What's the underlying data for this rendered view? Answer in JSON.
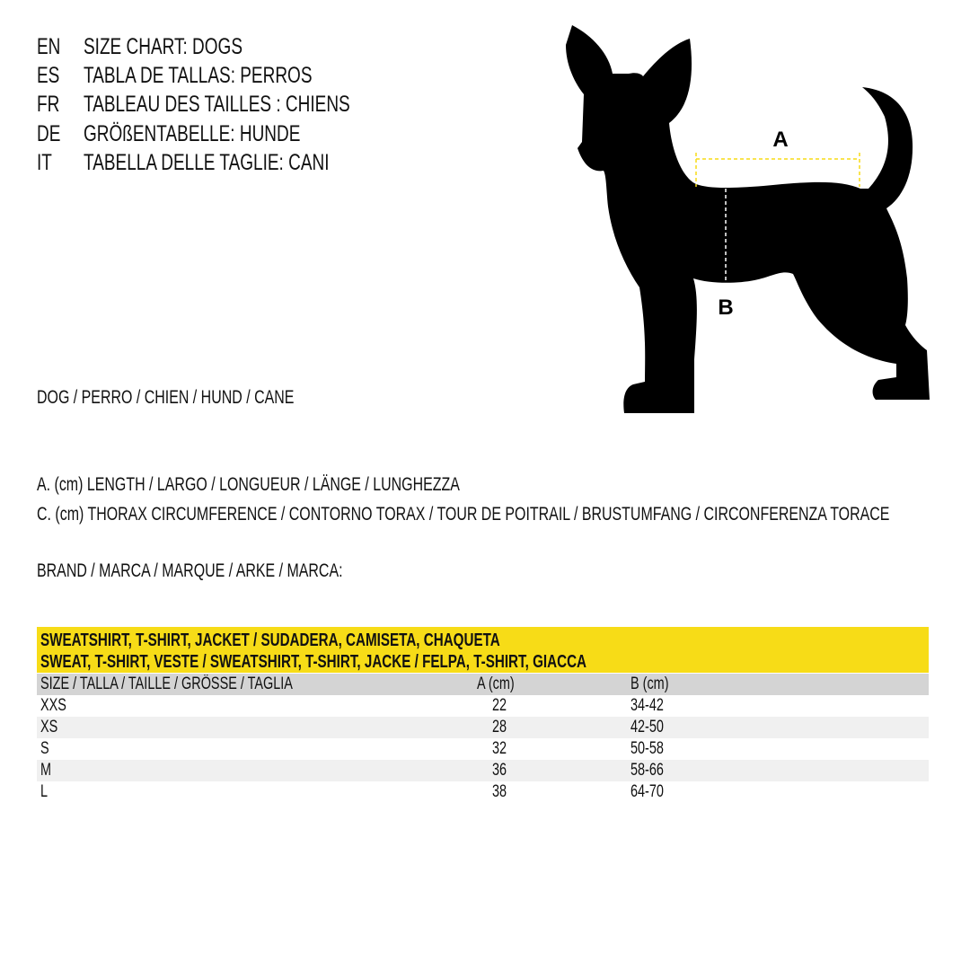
{
  "titles": [
    {
      "lang": "EN",
      "text": "SIZE CHART: DOGS"
    },
    {
      "lang": "ES",
      "text": "TABLA DE TALLAS: PERROS"
    },
    {
      "lang": "FR",
      "text": "TABLEAU DES TAILLES : CHIENS"
    },
    {
      "lang": "DE",
      "text": "GRÖßENTABELLE: HUNDE"
    },
    {
      "lang": "IT",
      "text": "TABELLA DELLE TAGLIE: CANI"
    }
  ],
  "animal": "DOG / PERRO / CHIEN / HUND / CANE",
  "measure_a": "A. (cm) LENGTH / LARGO / LONGUEUR / LÄNGE / LUNGHEZZA",
  "measure_c": "C. (cm) THORAX CIRCUMFERENCE / CONTORNO TORAX / TOUR DE POITRAIL / BRUSTUMFANG / CIRCONFERENZA TORACE",
  "brand": "BRAND / MARCA / MARQUE / ARKE / MARCA:",
  "diagram": {
    "label_a": "A",
    "label_b": "B",
    "colors": {
      "silhouette": "#000000",
      "length_line": "#f7dc17",
      "chest_line": "#ffffff"
    }
  },
  "table": {
    "title_1": "SWEATSHIRT, T-SHIRT, JACKET / SUDADERA, CAMISETA, CHAQUETA",
    "title_2": "SWEAT, T-SHIRT, VESTE / SWEATSHIRT, T-SHIRT, JACKE / FELPA, T-SHIRT, GIACCA",
    "headers": [
      "SIZE / TALLA / TAILLE / GRÖSSE / TAGLIA",
      "A (cm)",
      "B (cm)"
    ],
    "rows": [
      [
        "XXS",
        "22",
        "34-42"
      ],
      [
        "XS",
        "28",
        "42-50"
      ],
      [
        "S",
        "32",
        "50-58"
      ],
      [
        "M",
        "36",
        "58-66"
      ],
      [
        "L",
        "38",
        "64-70"
      ]
    ],
    "colors": {
      "title_bg": "#f7dc17",
      "header_bg": "#d4d4d4",
      "alt_row_bg": "#f0f0f0"
    }
  }
}
